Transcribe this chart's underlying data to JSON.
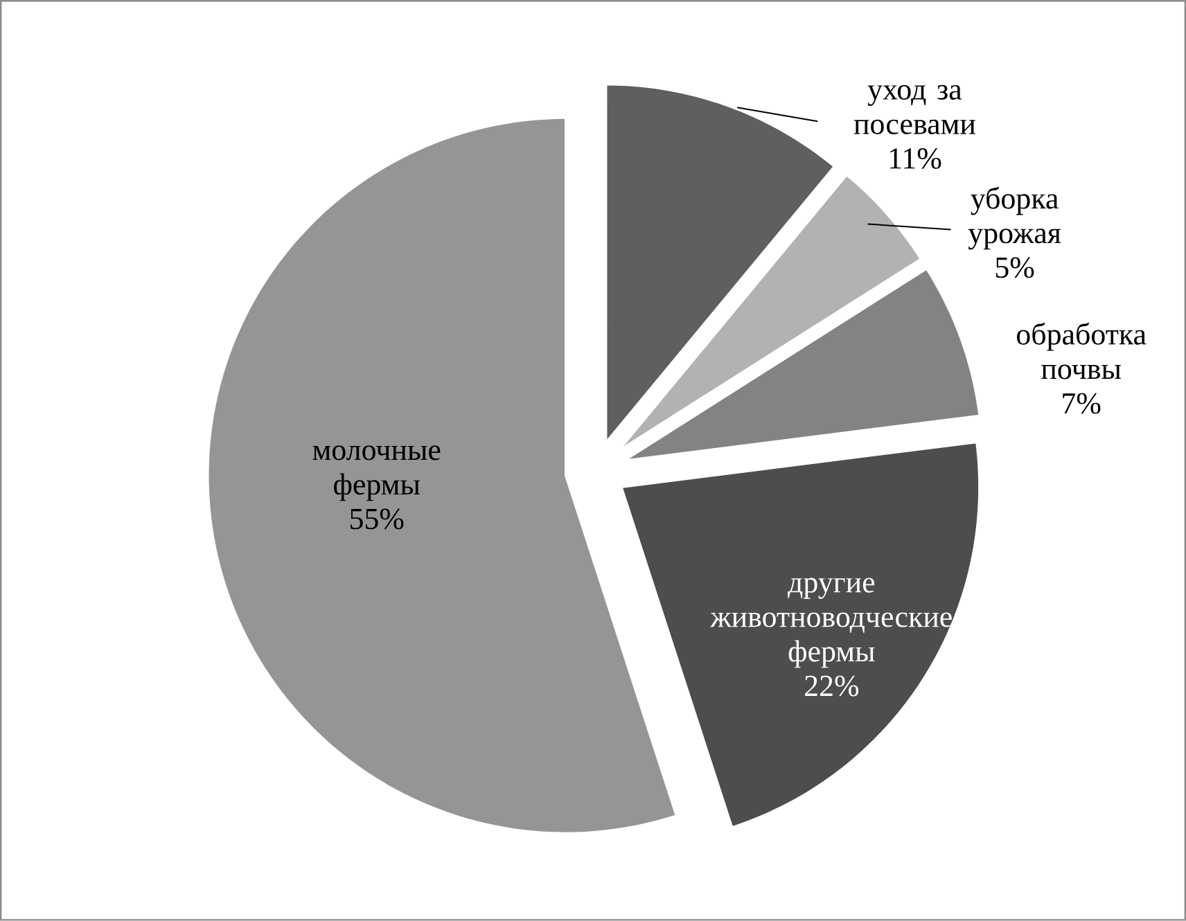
{
  "chart_data": {
    "type": "pie",
    "categories": [
      "уход за посевами",
      "уборка урожая",
      "обработка почвы",
      "другие животноводческие фермы",
      "молочные фермы"
    ],
    "values": [
      11,
      5,
      7,
      22,
      55
    ],
    "value_labels": [
      "11%",
      "5%",
      "7%",
      "22%",
      "55%"
    ],
    "colors": [
      "#5f5f5f",
      "#b2b2b2",
      "#838383",
      "#4d4d4d",
      "#959595"
    ]
  }
}
